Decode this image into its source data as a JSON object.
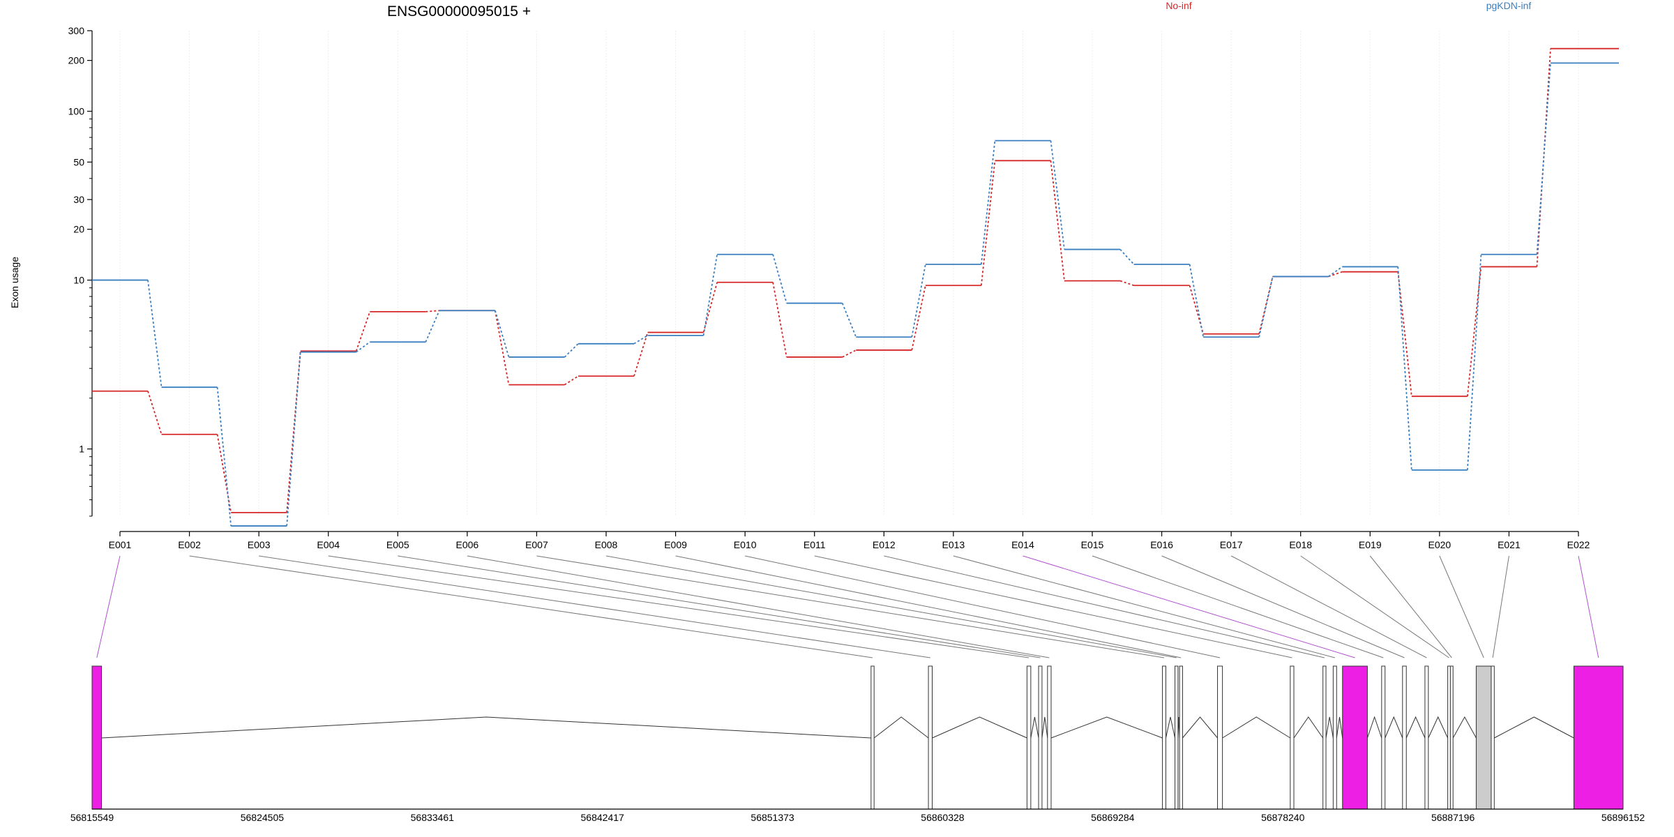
{
  "chart_data": {
    "type": "line",
    "title": "ENSG00000095015 +",
    "ylabel": "Exon usage",
    "yscale": "log",
    "ylim": [
      0.4,
      300
    ],
    "grid": "vertical",
    "legend_placement": "top",
    "yticks": [
      {
        "value": 300,
        "label": "300"
      },
      {
        "value": 200,
        "label": "200"
      },
      {
        "value": 100,
        "label": "100"
      },
      {
        "value": 50,
        "label": "50"
      },
      {
        "value": 30,
        "label": "30"
      },
      {
        "value": 20,
        "label": "20"
      },
      {
        "value": 10,
        "label": "10"
      },
      {
        "value": 1,
        "label": "1"
      }
    ],
    "categories": [
      "E001",
      "E002",
      "E003",
      "E004",
      "E005",
      "E006",
      "E007",
      "E008",
      "E009",
      "E010",
      "E011",
      "E012",
      "E013",
      "E014",
      "E015",
      "E016",
      "E017",
      "E018",
      "E019",
      "E020",
      "E021",
      "E022"
    ],
    "series": [
      {
        "name": "No-inf",
        "color": "#d62728",
        "values": [
          2.2,
          1.22,
          0.42,
          3.8,
          6.5,
          6.6,
          2.4,
          2.7,
          4.9,
          9.7,
          3.5,
          3.85,
          9.3,
          51,
          9.9,
          9.3,
          4.8,
          10.5,
          11.2,
          2.05,
          12,
          235
        ]
      },
      {
        "name": "pgKDN-inf",
        "color": "#3a7fc1",
        "values": [
          10,
          2.32,
          0.35,
          3.75,
          4.3,
          6.6,
          3.5,
          4.2,
          4.7,
          14.2,
          7.3,
          4.6,
          12.4,
          67,
          15.2,
          12.4,
          4.6,
          10.5,
          12,
          0.75,
          14.2,
          193
        ]
      }
    ],
    "gene_model": {
      "xlim": [
        56815549,
        56896152
      ],
      "xticks": [
        56815549,
        56824505,
        56833461,
        56842417,
        56851373,
        56860328,
        56869284,
        56878240,
        56887196,
        56896152
      ],
      "highlight_color": "#ee1fe5",
      "exons": [
        {
          "id": "E001",
          "start": 56815549,
          "end": 56816050,
          "highlight": true
        },
        {
          "id": "E002",
          "start": 56856560,
          "end": 56856720,
          "highlight": false
        },
        {
          "id": "E003",
          "start": 56859580,
          "end": 56859780,
          "highlight": false
        },
        {
          "id": "E004",
          "start": 56864770,
          "end": 56864970,
          "highlight": false
        },
        {
          "id": "E005",
          "start": 56865380,
          "end": 56865560,
          "highlight": false
        },
        {
          "id": "E006",
          "start": 56865850,
          "end": 56866040,
          "highlight": false
        },
        {
          "id": "E007",
          "start": 56871900,
          "end": 56872080,
          "highlight": false
        },
        {
          "id": "E008",
          "start": 56872560,
          "end": 56872720,
          "highlight": false
        },
        {
          "id": "E009",
          "start": 56872800,
          "end": 56872960,
          "highlight": false
        },
        {
          "id": "E010",
          "start": 56874800,
          "end": 56875060,
          "highlight": false
        },
        {
          "id": "E011",
          "start": 56878630,
          "end": 56878820,
          "highlight": false
        },
        {
          "id": "E012",
          "start": 56880350,
          "end": 56880510,
          "highlight": false
        },
        {
          "id": "E013",
          "start": 56880890,
          "end": 56881070,
          "highlight": false
        },
        {
          "id": "E014",
          "start": 56881380,
          "end": 56882690,
          "highlight": true
        },
        {
          "id": "E015",
          "start": 56883440,
          "end": 56883620,
          "highlight": false
        },
        {
          "id": "E016",
          "start": 56884540,
          "end": 56884740,
          "highlight": false
        },
        {
          "id": "E017",
          "start": 56885720,
          "end": 56885900,
          "highlight": false
        },
        {
          "id": "E018",
          "start": 56886920,
          "end": 56887060,
          "highlight": false
        },
        {
          "id": "E019",
          "start": 56887060,
          "end": 56887200,
          "highlight": false
        },
        {
          "id": "E020",
          "start": 56888420,
          "end": 56889210,
          "highlight": false
        },
        {
          "id": "E021",
          "start": 56889210,
          "end": 56889370,
          "highlight": false
        },
        {
          "id": "E022",
          "start": 56893560,
          "end": 56896152,
          "highlight": true
        }
      ]
    }
  }
}
